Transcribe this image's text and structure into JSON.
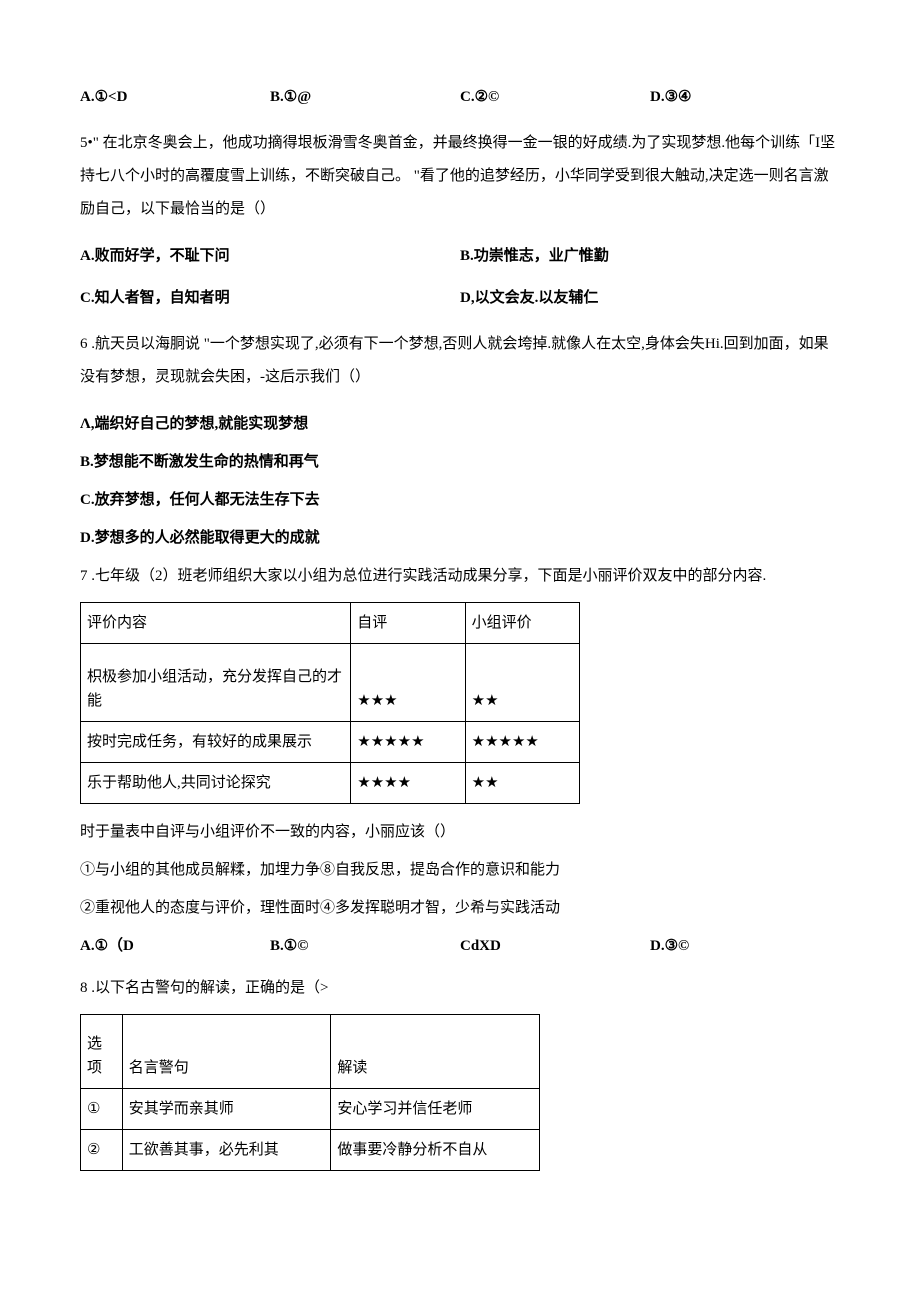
{
  "q4_opts": {
    "a": "A.①<D",
    "b": "B.①@",
    "c": "C.②©",
    "d": "D.③④"
  },
  "q5": {
    "text": "5•\" 在北京冬奥会上，他成功摘得垠板滑雪冬奥首金，并最终换得一金一银的好成绩.为了实现梦想.他每个训练「I坚持七八个小时的高覆度雪上训练，不断突破自己。 \"看了他的追梦经历，小华同学受到很大触动,决定选一则名言激励自己，以下最恰当的是（）",
    "a": "A.败而好学，不耻下问",
    "b": "B.功崇惟志，业广惟勤",
    "c": "C.知人者智，自知者明",
    "d": "D,以文会友.以友辅仁"
  },
  "q6": {
    "text": "6 .航天员以海胴说  \"一个梦想实现了,必须有下一个梦想,否则人就会垮掉.就像人在太空,身体会失Hi.回到加面，如果没有梦想，灵现就会失困，-这后示我们（）",
    "a": "Λ,端织好自己的梦想,就能实现梦想",
    "b": "B.梦想能不断激发生命的热情和再气",
    "c": "C.放弃梦想，任何人都无法生存下去",
    "d": "D.梦想多的人必然能取得更大的成就"
  },
  "q7": {
    "intro": "7 .七年级（2）班老师组织大家以小组为总位进行实践活动成果分享，下面是小丽评价双友中的部分内容.",
    "h1": "评价内容",
    "h2": "自评",
    "h3": "小组评价",
    "r1c1": "枳极参加小组活动，充分发挥自己的才能",
    "r1c2": "★★★",
    "r1c3": "★★",
    "r2c1": "按时完成任务，有较好的成果展示",
    "r2c2": "★★★★★",
    "r2c3": "★★★★★",
    "r3c1": "乐于帮助他人,共同讨论探究",
    "r3c2": "★★★★",
    "r3c3": "★★",
    "after": "时于量表中自评与小组评价不一致的内容，小丽应该（）",
    "s1": "①与小组的其他成员解糅，加埋力争⑧自我反思，提岛合作的意识和能力",
    "s2": "②重视他人的态度与评价，理性面时④多发挥聪明才智，少希与实践活动",
    "a": "A.①（D",
    "b": "B.①©",
    "c": "CdXD",
    "d": "D.③©"
  },
  "q8": {
    "intro": "8 .以下名古警句的解读，正确的是（>",
    "h1a": "选",
    "h1b": "项",
    "h2": "名言警句",
    "h3": "解读",
    "r1c1": "①",
    "r1c2": "安其学而亲其师",
    "r1c3": "安心学习并信任老师",
    "r2c1": "②",
    "r2c2": "工欲善其事，必先利其",
    "r2c3": "做事要冷静分析不自从"
  }
}
